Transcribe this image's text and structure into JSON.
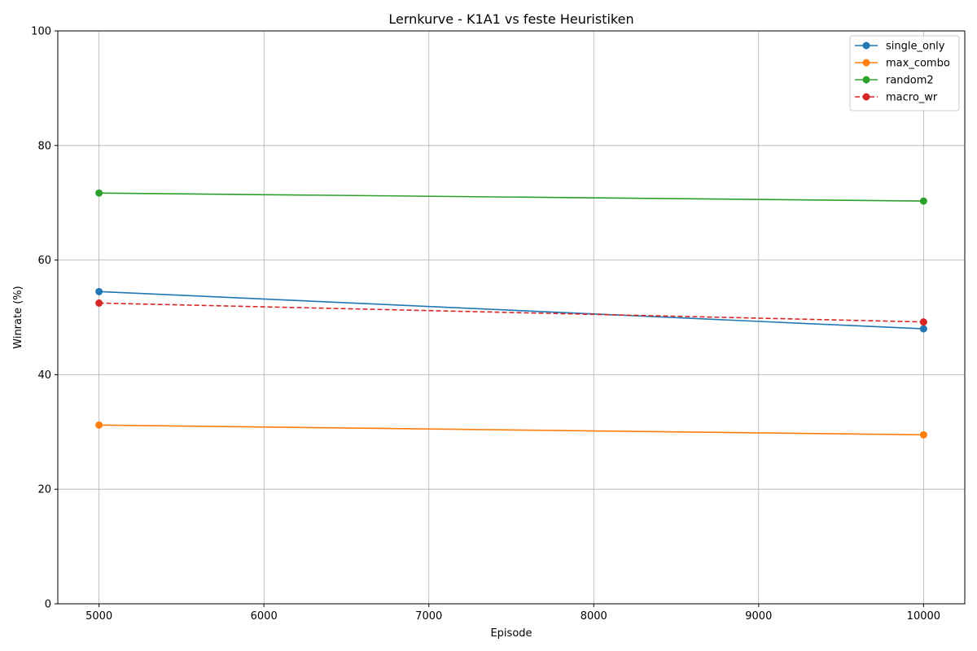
{
  "chart_data": {
    "type": "line",
    "title": "Lernkurve - K1A1 vs feste Heuristiken",
    "xlabel": "Episode",
    "ylabel": "Winrate (%)",
    "x": [
      5000,
      10000
    ],
    "xlim": [
      4750,
      10250
    ],
    "ylim": [
      0,
      100
    ],
    "xticks": [
      5000,
      6000,
      7000,
      8000,
      9000,
      10000
    ],
    "yticks": [
      0,
      20,
      40,
      60,
      80,
      100
    ],
    "grid": true,
    "legend_position": "top-right",
    "series": [
      {
        "name": "single_only",
        "values": [
          54.5,
          48.0
        ],
        "color": "#1f77b4",
        "style": "solid"
      },
      {
        "name": "max_combo",
        "values": [
          31.2,
          29.5
        ],
        "color": "#ff7f0e",
        "style": "solid"
      },
      {
        "name": "random2",
        "values": [
          71.7,
          70.3
        ],
        "color": "#2ca02c",
        "style": "solid"
      },
      {
        "name": "macro_wr",
        "values": [
          52.5,
          49.2
        ],
        "color": "#d62728",
        "style": "dashed"
      }
    ]
  }
}
